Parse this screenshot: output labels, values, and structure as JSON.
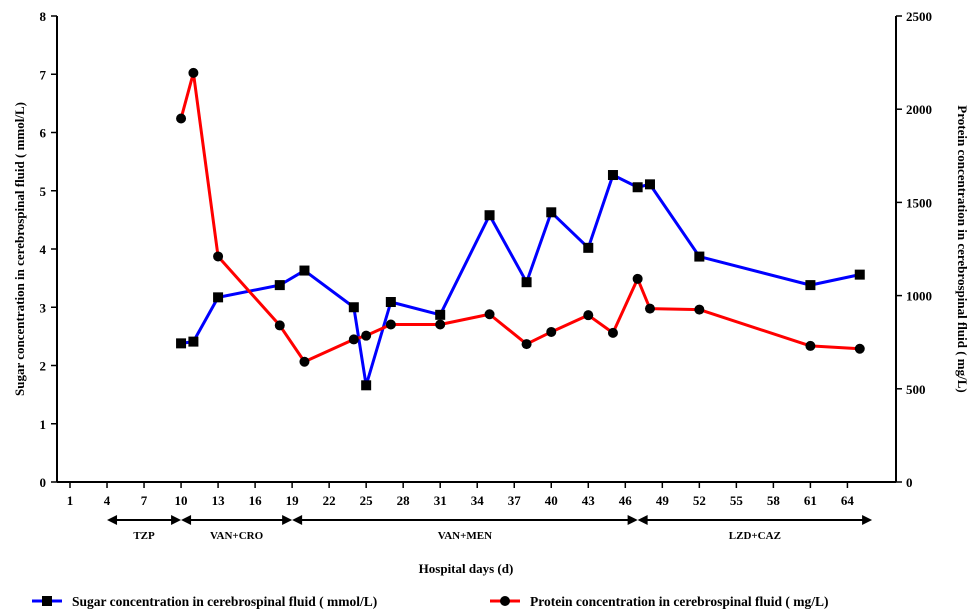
{
  "chart_data": {
    "type": "line",
    "title": "",
    "xlabel": "Hospital days (d)",
    "ylabel_left": "Sugar concentration in cerebrospinal fluid ( mmol/L)",
    "ylabel_right": "Protein concentration in cerebrospinal fluid ( mg/L)",
    "x_ticks": [
      "1",
      "4",
      "7",
      "10",
      "13",
      "16",
      "19",
      "22",
      "25",
      "28",
      "31",
      "34",
      "37",
      "40",
      "43",
      "46",
      "49",
      "52",
      "55",
      "58",
      "61",
      "64"
    ],
    "ylim_left": [
      0,
      8
    ],
    "yticks_left": [
      "0",
      "1",
      "2",
      "3",
      "4",
      "5",
      "6",
      "7",
      "8"
    ],
    "ylim_right": [
      0,
      2500
    ],
    "yticks_right": [
      "0",
      "500",
      "1000",
      "1500",
      "2000",
      "2500"
    ],
    "grid": false,
    "legend_position": "bottom",
    "series": [
      {
        "name": "Sugar concentration in cerebrospinal fluid ( mmol/L)",
        "axis": "left",
        "color": "#0000ff",
        "marker": "square",
        "x": [
          "10",
          "11",
          "13",
          "18",
          "20",
          "24",
          "25",
          "27",
          "31",
          "35",
          "38",
          "40",
          "43",
          "45",
          "47",
          "48",
          "52",
          "61",
          "65"
        ],
        "values": [
          2.38,
          2.41,
          3.17,
          3.38,
          3.63,
          3.0,
          1.66,
          3.09,
          2.87,
          4.58,
          3.43,
          4.63,
          4.02,
          5.27,
          5.06,
          5.11,
          3.87,
          3.38,
          3.56
        ]
      },
      {
        "name": "Protein concentration in cerebrospinal fluid ( mg/L)",
        "axis": "right",
        "color": "#ff0000",
        "marker": "circle",
        "x": [
          "10",
          "11",
          "13",
          "18",
          "20",
          "24",
          "25",
          "27",
          "31",
          "35",
          "38",
          "40",
          "43",
          "45",
          "47",
          "48",
          "52",
          "61",
          "65"
        ],
        "values": [
          1950,
          2195,
          1210,
          840,
          645,
          765,
          785,
          845,
          845,
          900,
          740,
          805,
          895,
          800,
          1090,
          930,
          925,
          730,
          715
        ]
      }
    ],
    "phases": [
      {
        "label": "TZP",
        "start": 4,
        "end": 10
      },
      {
        "label": "VAN+CRO",
        "start": 10,
        "end": 19
      },
      {
        "label": "VAN+MEN",
        "start": 19,
        "end": 47
      },
      {
        "label": "LZD+CAZ",
        "start": 47,
        "end": 66
      }
    ]
  }
}
